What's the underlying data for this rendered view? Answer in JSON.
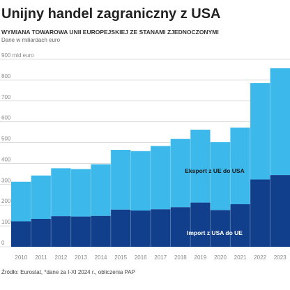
{
  "title": "Unijny handel zagraniczny z USA",
  "subtitle": "WYMIANA TOWAROWA UNII EUROPEJSKIEJ ZE STANAMI ZJEDNOCZONYMI",
  "note": "Dane w miliardach euro",
  "source": "Źródło: Eurostat, *dane za I-XI 2024 r., obliczenia PAP",
  "colors": {
    "export": "#3db8ea",
    "import": "#123f8c",
    "export_label": "#1a1a1a",
    "import_label": "#ffffff",
    "gridline": "#d6d6d6"
  },
  "chart_data": {
    "type": "area",
    "stacked": true,
    "categories": [
      "2010",
      "2011",
      "2012",
      "2013",
      "2014",
      "2015",
      "2016",
      "2017",
      "2018",
      "2019",
      "2020",
      "2021",
      "2022",
      "2023"
    ],
    "series": [
      {
        "name": "Import z USA do UE",
        "values": [
          122,
          134,
          147,
          145,
          148,
          178,
          174,
          180,
          190,
          212,
          176,
          204,
          323,
          344
        ]
      },
      {
        "name": "Eksport z UE do USA",
        "values": [
          190,
          208,
          230,
          228,
          248,
          287,
          285,
          304,
          328,
          350,
          326,
          368,
          463,
          513
        ]
      }
    ],
    "yticks": [
      {
        "value": 0,
        "label": "0"
      },
      {
        "value": 100,
        "label": "100"
      },
      {
        "value": 200,
        "label": "200"
      },
      {
        "value": 300,
        "label": "300"
      },
      {
        "value": 400,
        "label": "400"
      },
      {
        "value": 500,
        "label": "500"
      },
      {
        "value": 600,
        "label": "600"
      },
      {
        "value": 700,
        "label": "700"
      },
      {
        "value": 800,
        "label": "800"
      },
      {
        "value": 900,
        "label": "900 mld euro"
      }
    ],
    "ylim": [
      0,
      900
    ],
    "grid": true,
    "legend": "inline"
  }
}
